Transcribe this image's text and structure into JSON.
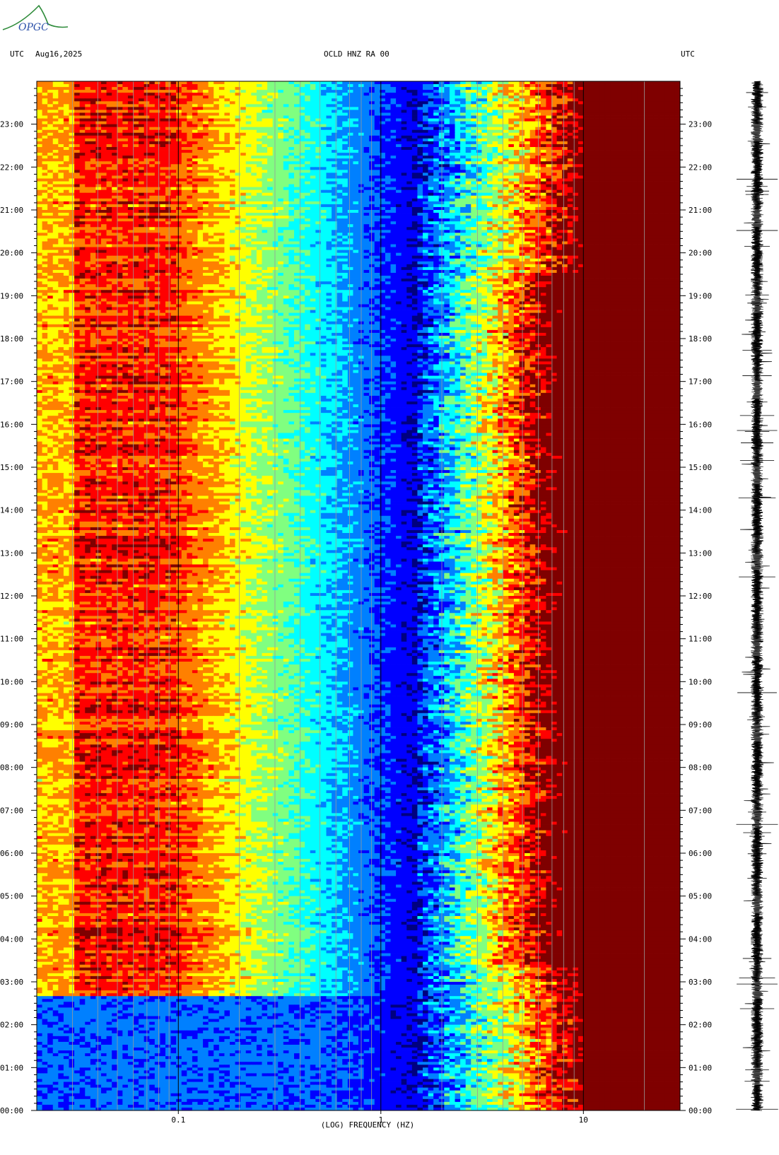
{
  "header": {
    "left_tz": "UTC",
    "date": "Aug16,2025",
    "station": "OCLD HNZ RA 00",
    "right_tz": "UTC"
  },
  "logo": {
    "text": "OPGC",
    "name": "opgc-logo"
  },
  "chart_data": {
    "type": "heatmap",
    "title": "OCLD HNZ RA 00",
    "xlabel": "(LOG) FREQUENCY (HZ)",
    "ylabel": "",
    "x_scale": "log",
    "xlim": [
      0.02,
      30
    ],
    "x_ticks": [
      {
        "value": 0.1,
        "label": "0.1"
      },
      {
        "value": 1,
        "label": "1"
      },
      {
        "value": 10,
        "label": "10"
      }
    ],
    "ylim_hours": [
      0,
      24
    ],
    "y_ticks_left": [
      "00:00",
      "01:00",
      "02:00",
      "03:00",
      "04:00",
      "05:00",
      "06:00",
      "07:00",
      "08:00",
      "09:00",
      "10:00",
      "11:00",
      "12:00",
      "13:00",
      "14:00",
      "15:00",
      "16:00",
      "17:00",
      "18:00",
      "19:00",
      "20:00",
      "21:00",
      "22:00",
      "23:00"
    ],
    "y_ticks_right": [
      "00:00",
      "01:00",
      "02:00",
      "03:00",
      "04:00",
      "05:00",
      "06:00",
      "07:00",
      "08:00",
      "09:00",
      "10:00",
      "11:00",
      "12:00",
      "13:00",
      "14:00",
      "15:00",
      "16:00",
      "17:00",
      "18:00",
      "19:00",
      "20:00",
      "21:00",
      "22:00",
      "23:00"
    ],
    "colormap": [
      "#00007f",
      "#0000ff",
      "#0080ff",
      "#00ffff",
      "#80ff80",
      "#ffff00",
      "#ff8000",
      "#ff0000",
      "#7f0000"
    ],
    "features": [
      {
        "description_hidden": true,
        "freq_range": [
          0.025,
          0.1
        ],
        "level": "high"
      },
      {
        "freq_range": [
          2,
          8
        ],
        "level": "rising"
      },
      {
        "freq_range": [
          10,
          30
        ],
        "level": "saturated"
      }
    ],
    "seismogram_side": "right"
  }
}
